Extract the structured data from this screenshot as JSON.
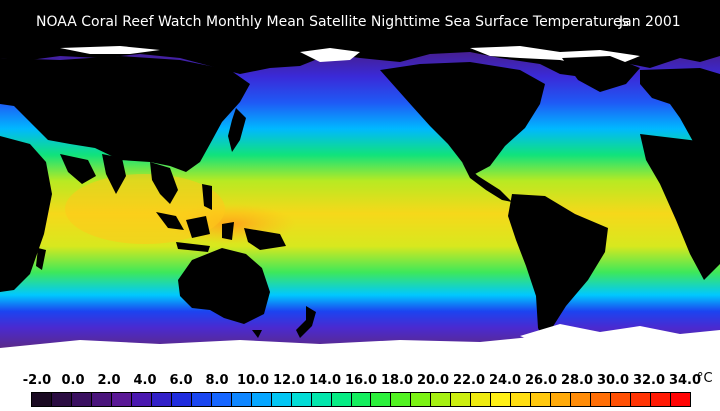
{
  "title": "NOAA Coral Reef Watch Monthly Mean Satellite Nighttime Sea Surface Temperatures",
  "date": "Jan 2001",
  "colors": {
    "background": "#000000",
    "land": "#000000",
    "ice_no_data": "#ffffff",
    "title_text": "#ffffff",
    "very_cold": "#5a2a8c",
    "cold": "#2f37e6",
    "cool": "#00b4ff",
    "mild": "#10e27c",
    "warm": "#b8ea22",
    "hot": "#ffc600"
  },
  "legend": {
    "unit": "°C",
    "ticks": [
      "-2.0",
      "0.0",
      "2.0",
      "4.0",
      "6.0",
      "8.0",
      "10.0",
      "12.0",
      "14.0",
      "16.0",
      "18.0",
      "20.0",
      "22.0",
      "24.0",
      "26.0",
      "28.0",
      "30.0",
      "32.0",
      "34.0"
    ],
    "swatches": [
      "#1a0a22",
      "#2b0d42",
      "#3a1060",
      "#4a147c",
      "#5a1896",
      "#4a18b0",
      "#3220c8",
      "#1f2cde",
      "#1a46f0",
      "#1666ff",
      "#0f86ff",
      "#06a6ff",
      "#02c6f4",
      "#02dcd6",
      "#02e6ac",
      "#06ec84",
      "#14ee5e",
      "#2cf03c",
      "#52f222",
      "#7cf214",
      "#a6f012",
      "#ccee10",
      "#eeea10",
      "#fff016",
      "#ffde12",
      "#ffc80e",
      "#ffaa0a",
      "#ff8c08",
      "#ff6e06",
      "#ff5004",
      "#ff3404",
      "#ff1a04",
      "#ff0404"
    ]
  }
}
